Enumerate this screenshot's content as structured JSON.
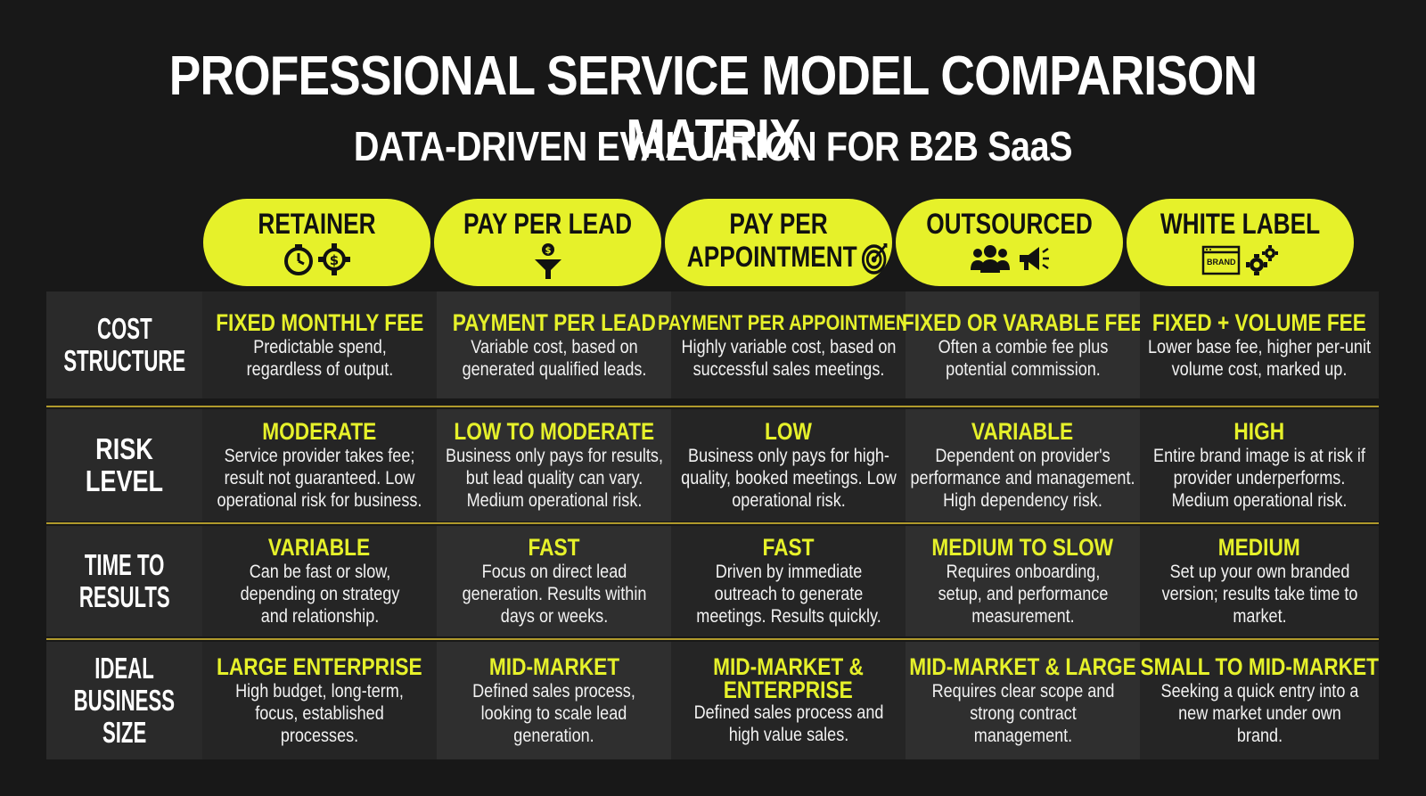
{
  "title": "PROFESSIONAL SERVICE MODEL COMPARISON MATRIX",
  "subtitle": "DATA-DRIVEN EVALUATION FOR B2B SaaS",
  "accent_color": "#e6f12a",
  "columns": [
    {
      "label": "RETAINER",
      "icons": [
        "stopwatch-icon",
        "dollar-gear-icon"
      ]
    },
    {
      "label": "PAY PER LEAD",
      "icons": [
        "funnel-dollar-icon"
      ]
    },
    {
      "label_line1": "PAY PER",
      "label_line2": "APPOINTMENT",
      "icons": [
        "target-icon"
      ]
    },
    {
      "label": "OUTSOURCED",
      "icons": [
        "team-icon",
        "megaphone-icon"
      ]
    },
    {
      "label": "WHITE LABEL",
      "brand_text": "BRAND",
      "icons": [
        "browser-window-icon",
        "gears-icon"
      ]
    }
  ],
  "rows": [
    {
      "label": "COST STRUCTURE",
      "label_lines": [
        "COST",
        "STRUCTURE"
      ],
      "cells": [
        {
          "head": "FIXED MONTHLY FEE",
          "desc": "Predictable spend, regardless of output."
        },
        {
          "head": "PAYMENT PER LEAD",
          "desc": "Variable cost, based on generated qualified leads."
        },
        {
          "head": "PAYMENT PER APPOINTMENT",
          "desc": "Highly variable cost, based on successful sales meetings."
        },
        {
          "head": "FIXED OR VARABLE FEE",
          "desc": "Often a combie fee plus potential commission."
        },
        {
          "head": "FIXED + VOLUME FEE",
          "desc": "Lower base fee, higher per-unit volume cost, marked up."
        }
      ]
    },
    {
      "label": "RISK LEVEL",
      "label_lines": [
        "RISK LEVEL"
      ],
      "cells": [
        {
          "head": "MODERATE",
          "desc": "Service provider takes fee; result not guaranteed. Low operational risk for business."
        },
        {
          "head": "LOW TO MODERATE",
          "desc": "Business only pays for results, but lead quality can vary. Medium operational risk."
        },
        {
          "head": "LOW",
          "desc": "Business only pays for high-quality, booked meetings. Low operational risk."
        },
        {
          "head": "VARIABLE",
          "desc": "Dependent on provider's performance and management. High dependency risk."
        },
        {
          "head": "HIGH",
          "desc": "Entire brand image is at risk if provider underperforms. Medium operational risk."
        }
      ]
    },
    {
      "label": "TIME TO RESULTS",
      "label_lines": [
        "TIME TO",
        "RESULTS"
      ],
      "cells": [
        {
          "head": "VARIABLE",
          "desc": "Can be fast or slow, depending on strategy and relationship."
        },
        {
          "head": "FAST",
          "desc": "Focus on direct lead generation. Results within days or weeks."
        },
        {
          "head": "FAST",
          "desc": "Driven by immediate outreach to generate meetings. Results quickly."
        },
        {
          "head": "MEDIUM TO SLOW",
          "desc": "Requires onboarding, setup, and performance measurement."
        },
        {
          "head": "MEDIUM",
          "desc": "Set up your own branded version; results take time to market."
        }
      ]
    },
    {
      "label": "IDEAL BUSINESS SIZE",
      "label_lines": [
        "IDEAL",
        "BUSINESS",
        "SIZE"
      ],
      "cells": [
        {
          "head": "LARGE ENTERPRISE",
          "desc": "High budget, long-term, focus, established processes."
        },
        {
          "head": "MID-MARKET",
          "desc": "Defined sales process, looking to scale lead generation."
        },
        {
          "head_lines": [
            "MID-MARKET &",
            "ENTERPRISE"
          ],
          "desc": "Defined sales process and high value sales."
        },
        {
          "head": "MID-MARKET & LARGE",
          "desc": "Requires clear scope and strong contract management."
        },
        {
          "head": "SMALL TO MID-MARKET",
          "desc": "Seeking a quick entry into a new market under own brand."
        }
      ]
    }
  ]
}
